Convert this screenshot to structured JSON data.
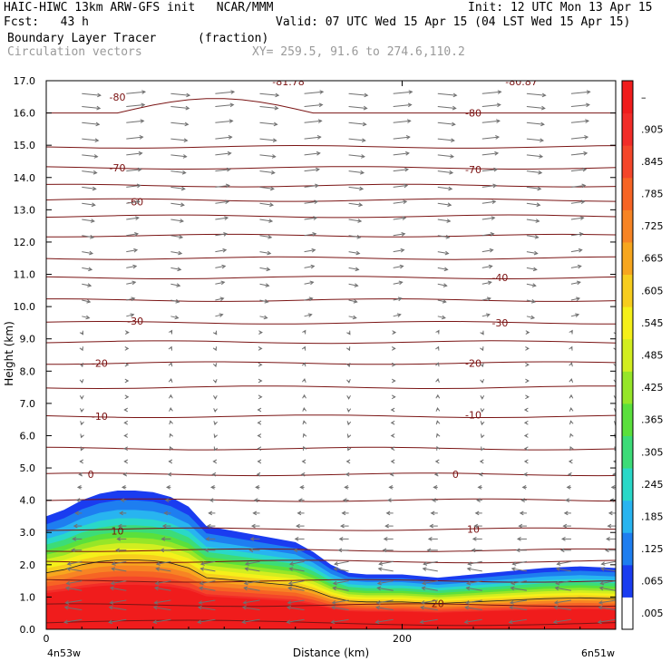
{
  "header": {
    "line1_left": "HAIC-HIWC 13km ARW-GFS init   NCAR/MMM",
    "line1_right": "Init: 12 UTC Mon 13 Apr 15",
    "line2_left": "Fcst:   43 h",
    "line2_right": "Valid: 07 UTC Wed 15 Apr 15 (04 LST Wed 15 Apr 15)",
    "field_name": "Boundary Layer Tracer",
    "field_units": "(fraction)",
    "vector_label": "Circulation vectors",
    "xy_label": "XY= 259.5, 91.6 to 274.6,110.2"
  },
  "chart_data": {
    "type": "heatmap",
    "xlabel": "Distance (km)",
    "ylabel": "Height (km)",
    "xlim": [
      0,
      320
    ],
    "ylim": [
      0,
      17
    ],
    "x_ticks": [
      0,
      200
    ],
    "y_ticks": [
      "0.0",
      "1.0",
      "2.0",
      "3.0",
      "4.0",
      "5.0",
      "6.0",
      "7.0",
      "8.0",
      "9.0",
      "10.0",
      "11.0",
      "12.0",
      "13.0",
      "14.0",
      "15.0",
      "16.0",
      "17.0"
    ],
    "x_endpoint_labels": [
      "4n53w",
      "6n51w"
    ],
    "colorbar": {
      "labels": [
        ".005",
        ".065",
        ".125",
        ".185",
        ".245",
        ".305",
        ".365",
        ".425",
        ".485",
        ".545",
        ".605",
        ".665",
        ".725",
        ".785",
        ".845",
        ".905",
        "–"
      ],
      "colors": [
        "#ffffff",
        "#1a3cf0",
        "#1e7ef0",
        "#28b4f0",
        "#2ad8c8",
        "#3cdc78",
        "#5ae03c",
        "#96e628",
        "#d2ee20",
        "#f5f01a",
        "#f7cd1e",
        "#f7a61e",
        "#f78424",
        "#f66424",
        "#f4462a",
        "#f22c28",
        "#f01c1c"
      ]
    },
    "tracer_envelope": {
      "x": [
        0,
        10,
        20,
        30,
        40,
        50,
        60,
        70,
        80,
        90,
        100,
        120,
        140,
        150,
        160,
        170,
        180,
        200,
        220,
        240,
        260,
        280,
        300,
        320
      ],
      "outer_top": [
        3.5,
        3.7,
        4.0,
        4.2,
        4.3,
        4.3,
        4.25,
        4.1,
        3.8,
        3.2,
        3.1,
        2.9,
        2.7,
        2.4,
        2.0,
        1.75,
        1.7,
        1.7,
        1.6,
        1.7,
        1.8,
        1.9,
        1.95,
        1.9
      ]
    },
    "temperature_contours": {
      "unit": "C",
      "labeled": [
        {
          "value": "-80",
          "x": 40,
          "y": 16.5
        },
        {
          "value": "-80",
          "x": 240,
          "y": 16.0
        },
        {
          "value": "-70",
          "x": 40,
          "y": 14.3
        },
        {
          "value": "-70",
          "x": 240,
          "y": 14.25
        },
        {
          "value": "-60",
          "x": 50,
          "y": 13.25
        },
        {
          "value": "-40",
          "x": 255,
          "y": 10.9
        },
        {
          "value": "-30",
          "x": 50,
          "y": 9.55
        },
        {
          "value": "-30",
          "x": 255,
          "y": 9.5
        },
        {
          "value": "-20",
          "x": 30,
          "y": 8.25
        },
        {
          "value": "-20",
          "x": 240,
          "y": 8.25
        },
        {
          "value": "-10",
          "x": 30,
          "y": 6.6
        },
        {
          "value": "-10",
          "x": 240,
          "y": 6.65
        },
        {
          "value": "0",
          "x": 25,
          "y": 4.8
        },
        {
          "value": "0",
          "x": 230,
          "y": 4.8
        },
        {
          "value": "10",
          "x": 40,
          "y": 3.05
        },
        {
          "value": "10",
          "x": 240,
          "y": 3.1
        },
        {
          "value": "20",
          "x": 220,
          "y": 0.8
        }
      ],
      "top_labels": [
        "-81.78",
        "-80.87"
      ]
    },
    "wind_vectors": "circulation vectors on regular grid; strong westward (leftward) flow below ~2 km, eastward flow aloft"
  }
}
